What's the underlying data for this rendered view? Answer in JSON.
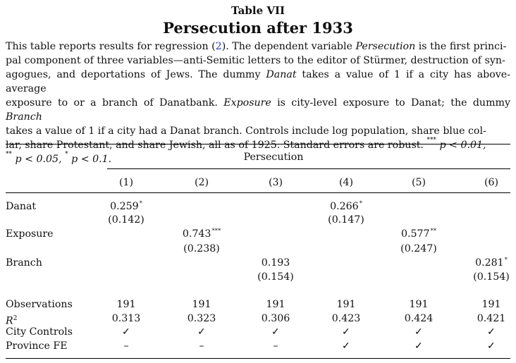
{
  "table_number": "Table VII",
  "table_title": "Persecution after 1933",
  "caption": {
    "line1_a": "This table reports results for regression (",
    "line1_ref": "2",
    "line1_b": "). The dependent variable ",
    "line1_var": "Persecution",
    "line1_c": " is the first princi-",
    "line2": "pal component of three variables—anti-Semitic letters to the editor of Stürmer, destruction of syn-",
    "line3_a": "agogues, and deportations of Jews. The dummy ",
    "line3_var": "Danat",
    "line3_b": " takes a value of 1 if a city has above-average",
    "line4_a": "exposure to or a branch of Danatbank. ",
    "line4_var1": "Exposure",
    "line4_b": " is city-level exposure to Danat; the dummy ",
    "line4_var2": "Branch",
    "line5": "takes a value of 1 if a city had a Danat branch. Controls include log population, share blue col-",
    "line6_a": "lar, share Protestant, and share Jewish, all as of 1925. Standard errors are robust. ",
    "line6_s1": "***",
    "line6_b": " p < 0.01,",
    "line7_s2": "**",
    "line7_a": " p < 0.05, ",
    "line7_s3": "*",
    "line7_b": " p < 0.1."
  },
  "table": {
    "header_group": "Persecution",
    "columns": [
      "(1)",
      "(2)",
      "(3)",
      "(4)",
      "(5)",
      "(6)"
    ],
    "rows": {
      "danat": {
        "label": "Danat",
        "coef": [
          "0.259",
          "",
          "",
          "0.266",
          "",
          ""
        ],
        "stars": [
          "*",
          "",
          "",
          "*",
          "",
          ""
        ],
        "se": [
          "(0.142)",
          "",
          "",
          "(0.147)",
          "",
          ""
        ]
      },
      "exposure": {
        "label": "Exposure",
        "coef": [
          "",
          "0.743",
          "",
          "",
          "0.577",
          ""
        ],
        "stars": [
          "",
          "***",
          "",
          "",
          "**",
          ""
        ],
        "se": [
          "",
          "(0.238)",
          "",
          "",
          "(0.247)",
          ""
        ]
      },
      "branch": {
        "label": "Branch",
        "coef": [
          "",
          "",
          "0.193",
          "",
          "",
          "0.281"
        ],
        "stars": [
          "",
          "",
          "",
          "",
          "",
          "*"
        ],
        "se": [
          "",
          "",
          "(0.154)",
          "",
          "",
          "(0.154)"
        ]
      }
    },
    "stats": {
      "observations": {
        "label": "Observations",
        "values": [
          "191",
          "191",
          "191",
          "191",
          "191",
          "191"
        ]
      },
      "r2": {
        "label": "R",
        "label_sup": "2",
        "values": [
          "0.313",
          "0.323",
          "0.306",
          "0.423",
          "0.424",
          "0.421"
        ]
      },
      "city_controls": {
        "label": "City Controls",
        "values": [
          "✓",
          "✓",
          "✓",
          "✓",
          "✓",
          "✓"
        ]
      },
      "province_fe": {
        "label": "Province FE",
        "values": [
          "–",
          "–",
          "–",
          "✓",
          "✓",
          "✓"
        ]
      }
    }
  }
}
